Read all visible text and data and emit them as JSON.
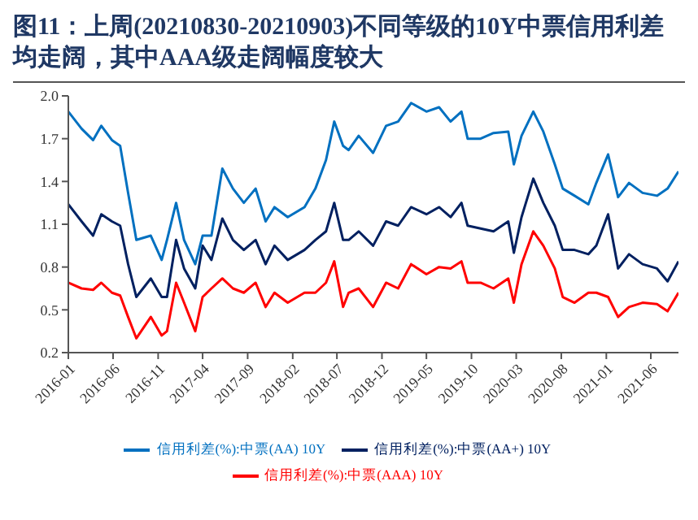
{
  "chart_data": {
    "type": "line",
    "title": "图11：上周(20210830-20210903)不同等级的10Y中票信用利差均走阔，其中AAA级走阔幅度较大",
    "x": [
      "2016-01-01",
      "2016-02-15",
      "2016-03-25",
      "2016-04-22",
      "2016-05-28",
      "2016-06-25",
      "2016-07-22",
      "2016-08-19",
      "2016-10-07",
      "2016-11-13",
      "2016-12-01",
      "2017-01-01",
      "2017-01-28",
      "2017-03-07",
      "2017-04-01",
      "2017-05-01",
      "2017-06-07",
      "2017-07-13",
      "2017-08-19",
      "2017-09-28",
      "2017-11-01",
      "2017-12-01",
      "2018-01-15",
      "2018-03-13",
      "2018-04-19",
      "2018-05-25",
      "2018-06-22",
      "2018-07-22",
      "2018-08-10",
      "2018-09-13",
      "2018-11-01",
      "2018-12-15",
      "2019-01-25",
      "2019-03-10",
      "2019-05-01",
      "2019-06-13",
      "2019-07-22",
      "2019-08-28",
      "2019-09-18",
      "2019-11-01",
      "2019-12-15",
      "2020-02-03",
      "2020-02-22",
      "2020-03-19",
      "2020-04-28",
      "2020-06-01",
      "2020-07-10",
      "2020-08-06",
      "2020-09-15",
      "2020-11-01",
      "2020-11-28",
      "2021-01-07",
      "2021-02-10",
      "2021-03-19",
      "2021-05-04",
      "2021-06-22",
      "2021-07-28",
      "2021-09-03"
    ],
    "series": [
      {
        "name": "信用利差(%):中票(AAA) 10Y",
        "color": "#ff0000",
        "values": [
          0.69,
          0.65,
          0.64,
          0.69,
          0.62,
          0.6,
          0.45,
          0.3,
          0.45,
          0.32,
          0.35,
          0.69,
          0.55,
          0.35,
          0.59,
          0.65,
          0.72,
          0.65,
          0.62,
          0.69,
          0.52,
          0.62,
          0.55,
          0.62,
          0.62,
          0.69,
          0.84,
          0.52,
          0.62,
          0.65,
          0.52,
          0.69,
          0.65,
          0.82,
          0.75,
          0.8,
          0.79,
          0.84,
          0.69,
          0.69,
          0.65,
          0.72,
          0.55,
          0.82,
          1.05,
          0.95,
          0.79,
          0.59,
          0.55,
          0.62,
          0.62,
          0.59,
          0.45,
          0.52,
          0.55,
          0.54,
          0.49,
          0.62
        ]
      },
      {
        "name": "信用利差(%):中票(AA+) 10Y",
        "color": "#002060",
        "values": [
          1.24,
          1.12,
          1.02,
          1.17,
          1.12,
          1.09,
          0.82,
          0.59,
          0.72,
          0.59,
          0.59,
          0.99,
          0.79,
          0.65,
          0.95,
          0.85,
          1.14,
          0.99,
          0.92,
          0.99,
          0.82,
          0.95,
          0.85,
          0.92,
          0.99,
          1.05,
          1.25,
          0.99,
          0.99,
          1.05,
          0.95,
          1.12,
          1.09,
          1.22,
          1.17,
          1.22,
          1.15,
          1.25,
          1.09,
          1.07,
          1.05,
          1.12,
          0.9,
          1.15,
          1.42,
          1.25,
          1.09,
          0.92,
          0.92,
          0.89,
          0.95,
          1.17,
          0.79,
          0.89,
          0.82,
          0.79,
          0.7,
          0.84
        ]
      },
      {
        "name": "信用利差(%):中票(AA) 10Y",
        "color": "#0070c0",
        "values": [
          1.89,
          1.77,
          1.69,
          1.79,
          1.69,
          1.65,
          1.32,
          0.99,
          1.02,
          0.85,
          0.99,
          1.25,
          0.99,
          0.82,
          1.02,
          1.02,
          1.49,
          1.35,
          1.25,
          1.35,
          1.12,
          1.22,
          1.15,
          1.22,
          1.35,
          1.55,
          1.82,
          1.65,
          1.62,
          1.72,
          1.6,
          1.79,
          1.82,
          1.95,
          1.89,
          1.92,
          1.82,
          1.89,
          1.7,
          1.7,
          1.74,
          1.75,
          1.52,
          1.72,
          1.89,
          1.75,
          1.52,
          1.35,
          1.3,
          1.24,
          1.39,
          1.59,
          1.29,
          1.39,
          1.32,
          1.3,
          1.35,
          1.47
        ]
      }
    ],
    "xlim": [
      "2016-01-01",
      "2021-09-03"
    ],
    "xticks": [
      "2016-01",
      "2016-06",
      "2016-11",
      "2017-04",
      "2017-09",
      "2018-02",
      "2018-07",
      "2018-12",
      "2019-05",
      "2019-10",
      "2020-03",
      "2020-08",
      "2021-01",
      "2021-06"
    ],
    "ylim": [
      0.2,
      2.0
    ],
    "yticks": [
      {
        "value": 0.2,
        "label": "0.2"
      },
      {
        "value": 0.5,
        "label": "0.5"
      },
      {
        "value": 0.8,
        "label": "0.8"
      },
      {
        "value": 1.1,
        "label": "1.1"
      },
      {
        "value": 1.4,
        "label": "1.4"
      },
      {
        "value": 1.7,
        "label": "1.7"
      },
      {
        "value": 2.0,
        "label": "2.0"
      }
    ],
    "grid": false,
    "legend": "bottom",
    "marker": "none",
    "line_style": "solid"
  }
}
